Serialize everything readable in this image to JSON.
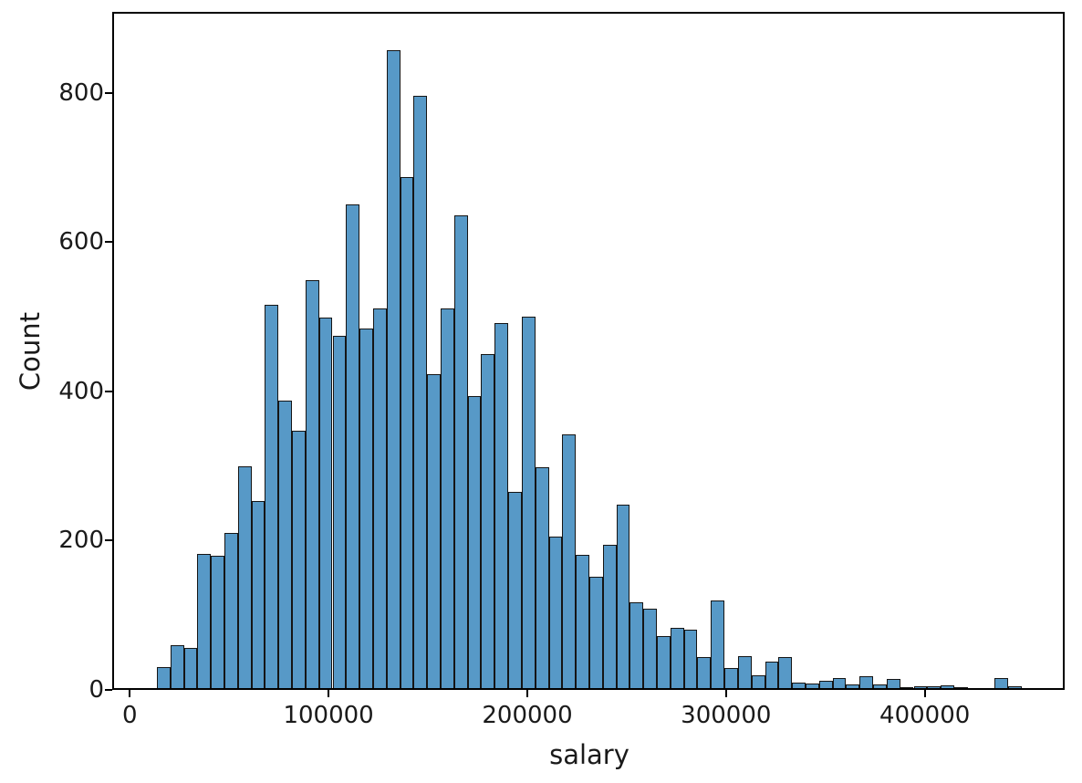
{
  "figure": {
    "background": "#ffffff"
  },
  "axes": {
    "xlabel": "salary",
    "ylabel": "Count",
    "x_ticks": [
      {
        "value": 0,
        "label": "0"
      },
      {
        "value": 100000,
        "label": "100000"
      },
      {
        "value": 200000,
        "label": "200000"
      },
      {
        "value": 300000,
        "label": "300000"
      },
      {
        "value": 400000,
        "label": "400000"
      }
    ],
    "y_ticks": [
      {
        "value": 0,
        "label": "0"
      },
      {
        "value": 200,
        "label": "200"
      },
      {
        "value": 400,
        "label": "400"
      },
      {
        "value": 600,
        "label": "600"
      },
      {
        "value": 800,
        "label": "800"
      }
    ]
  },
  "chart_data": {
    "type": "bar",
    "subtype": "histogram",
    "title": "",
    "xlabel": "salary",
    "ylabel": "Count",
    "grid": false,
    "legend_position": "none",
    "bar_fill": "#5799C7",
    "bar_edge": "#151515",
    "n_bins": 64,
    "bin_start": 13600,
    "bin_width": 6800,
    "xlim": [
      -7900,
      470400
    ],
    "ylim": [
      0,
      906
    ],
    "counts": [
      28,
      57,
      54,
      180,
      177,
      208,
      297,
      251,
      513,
      385,
      345,
      547,
      496,
      472,
      648,
      482,
      508,
      855,
      685,
      793,
      421,
      508,
      633,
      391,
      447,
      489,
      263,
      497,
      296,
      203,
      340,
      178,
      149,
      192,
      246,
      115,
      106,
      70,
      81,
      78,
      42,
      117,
      27,
      43,
      17,
      35,
      42,
      7,
      6,
      10,
      14,
      5,
      16,
      5,
      12,
      1,
      2,
      2,
      4,
      1,
      0,
      0,
      13,
      2
    ]
  }
}
